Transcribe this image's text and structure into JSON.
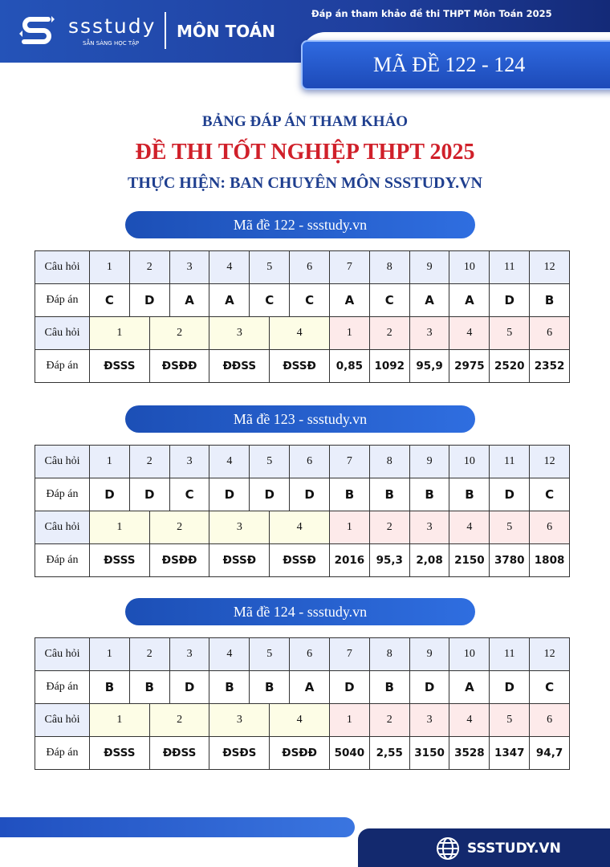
{
  "header": {
    "brand": "ssstudy",
    "tagline": "SẴN SÀNG HỌC TẬP",
    "subject": "MÔN TOÁN",
    "title": "Đáp án tham khảo đề thi THPT Môn Toán 2025",
    "code_range": "MÃ ĐỀ 122 - 124"
  },
  "headings": {
    "line1": "BẢNG ĐÁP ÁN THAM KHẢO",
    "line2": "ĐỀ THI TỐT NGHIỆP THPT 2025",
    "line3": "THỰC HIỆN: BAN CHUYÊN MÔN SSSTUDY.VN"
  },
  "labels": {
    "question": "Câu hỏi",
    "answer": "Đáp án"
  },
  "part1_numbers": [
    "1",
    "2",
    "3",
    "4",
    "5",
    "6",
    "7",
    "8",
    "9",
    "10",
    "11",
    "12"
  ],
  "part2_numbers": [
    "1",
    "2",
    "3",
    "4"
  ],
  "part3_numbers": [
    "1",
    "2",
    "3",
    "4",
    "5",
    "6"
  ],
  "exams": [
    {
      "title": "Mã đề 122 - ssstudy.vn",
      "mc": [
        "C",
        "D",
        "A",
        "A",
        "C",
        "C",
        "A",
        "C",
        "A",
        "A",
        "D",
        "B"
      ],
      "tf": [
        "ĐSSS",
        "ĐSĐĐ",
        "ĐĐSS",
        "ĐSSĐ"
      ],
      "short": [
        "0,85",
        "1092",
        "95,9",
        "2975",
        "2520",
        "2352"
      ]
    },
    {
      "title": "Mã đề 123 - ssstudy.vn",
      "mc": [
        "D",
        "D",
        "C",
        "D",
        "D",
        "D",
        "B",
        "B",
        "B",
        "B",
        "D",
        "C"
      ],
      "tf": [
        "ĐSSS",
        "ĐSĐĐ",
        "ĐSSĐ",
        "ĐSSĐ"
      ],
      "short": [
        "2016",
        "95,3",
        "2,08",
        "2150",
        "3780",
        "1808"
      ]
    },
    {
      "title": "Mã đề 124 - ssstudy.vn",
      "mc": [
        "B",
        "B",
        "D",
        "B",
        "B",
        "A",
        "D",
        "B",
        "D",
        "A",
        "D",
        "C"
      ],
      "tf": [
        "ĐSSS",
        "ĐĐSS",
        "ĐSĐS",
        "ĐSĐĐ"
      ],
      "short": [
        "5040",
        "2,55",
        "3150",
        "3528",
        "1347",
        "94,7"
      ]
    }
  ],
  "footer": {
    "site": "SSSTUDY.VN"
  },
  "colors": {
    "brand_blue": "#2453b8",
    "heading_blue": "#1f3f8f",
    "heading_red": "#d0202a",
    "navy": "#13296e"
  }
}
